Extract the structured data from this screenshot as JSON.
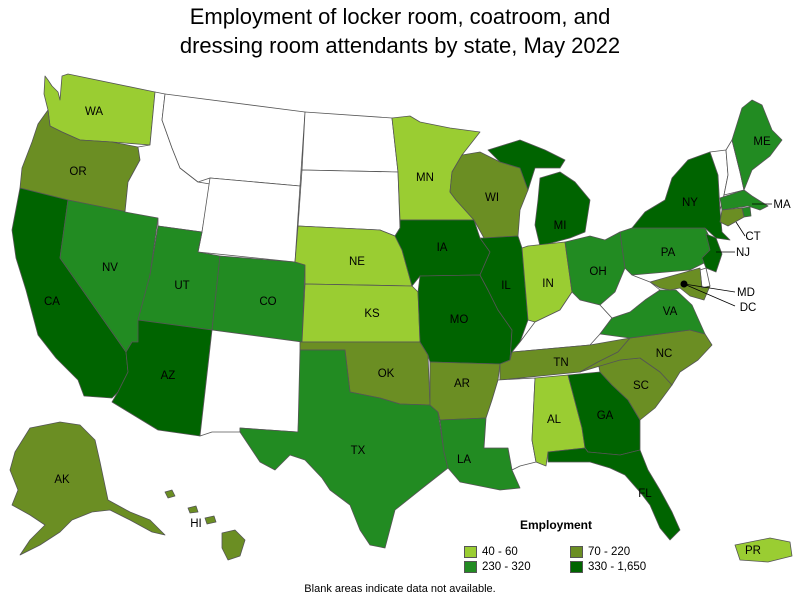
{
  "title_line1": "Employment of locker room, coatroom, and",
  "title_line2": "dressing room attendants by state, May 2022",
  "legend": {
    "title": "Employment",
    "items": [
      {
        "label": "40 - 60",
        "color": "#9acd32"
      },
      {
        "label": "70 - 220",
        "color": "#6b8e23"
      },
      {
        "label": "230 - 320",
        "color": "#228b22"
      },
      {
        "label": "330 - 1,650",
        "color": "#006400"
      }
    ]
  },
  "note": "Blank areas indicate data not available.",
  "colors": {
    "c1": "#9acd32",
    "c2": "#6b8e23",
    "c3": "#228b22",
    "c4": "#006400",
    "blank": "#ffffff"
  },
  "states": {
    "WA": "c1",
    "OR": "c2",
    "CA": "c4",
    "NV": "c3",
    "ID": "blank",
    "MT": "blank",
    "WY": "blank",
    "UT": "c3",
    "AZ": "c4",
    "CO": "c3",
    "NM": "blank",
    "ND": "blank",
    "SD": "blank",
    "NE": "c1",
    "KS": "c1",
    "OK": "c2",
    "TX": "c3",
    "MN": "c1",
    "IA": "c4",
    "MO": "c4",
    "AR": "c2",
    "LA": "c3",
    "WI": "c2",
    "IL": "c4",
    "MI": "c4",
    "IN": "c1",
    "OH": "c3",
    "KY": "blank",
    "TN": "c2",
    "MS": "blank",
    "AL": "c1",
    "GA": "c4",
    "FL": "c4",
    "SC": "c2",
    "NC": "c2",
    "VA": "c3",
    "WV": "blank",
    "PA": "c3",
    "NY": "c4",
    "VT": "blank",
    "NH": "blank",
    "ME": "c3",
    "MA": "c3",
    "RI": "c3",
    "CT": "c2",
    "NJ": "c4",
    "DE": "blank",
    "MD": "c2",
    "DC": "c4",
    "AK": "c2",
    "HI": "c2",
    "PR": "c1"
  },
  "labels": [
    "WA",
    "OR",
    "CA",
    "NV",
    "UT",
    "AZ",
    "CO",
    "NE",
    "KS",
    "OK",
    "TX",
    "MN",
    "IA",
    "MO",
    "AR",
    "LA",
    "WI",
    "IL",
    "MI",
    "IN",
    "OH",
    "TN",
    "AL",
    "GA",
    "FL",
    "SC",
    "NC",
    "VA",
    "PA",
    "NY",
    "ME",
    "MA",
    "CT",
    "NJ",
    "MD",
    "DC",
    "AK",
    "HI",
    "PR"
  ]
}
